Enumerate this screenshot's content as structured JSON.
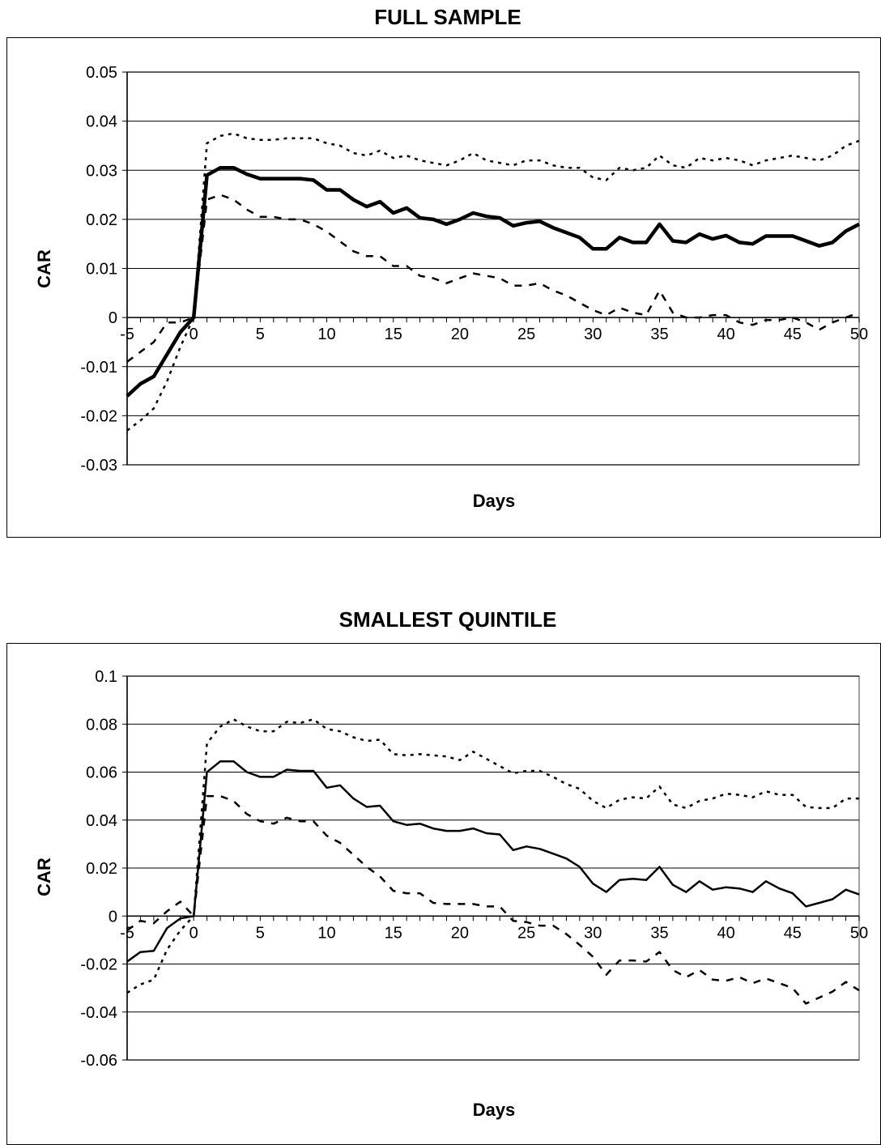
{
  "charts": [
    {
      "title": "FULL SAMPLE",
      "xlabel": "Days",
      "ylabel": "CAR"
    },
    {
      "title": "SMALLEST QUINTILE",
      "xlabel": "Days",
      "ylabel": "CAR"
    }
  ],
  "chart_data": [
    {
      "type": "line",
      "title": "FULL SAMPLE",
      "xlabel": "Days",
      "ylabel": "CAR",
      "xlim": [
        -5,
        50
      ],
      "ylim": [
        -0.03,
        0.05
      ],
      "xticks": [
        -5,
        0,
        5,
        10,
        15,
        20,
        25,
        30,
        35,
        40,
        45,
        50
      ],
      "xtick_labels": [
        "-5",
        "0",
        "5",
        "10",
        "15",
        "20",
        "25",
        "30",
        "35",
        "40",
        "45",
        "50"
      ],
      "yticks": [
        -0.03,
        -0.02,
        -0.01,
        0,
        0.01,
        0.02,
        0.03,
        0.04,
        0.05
      ],
      "ytick_labels": [
        "-0.03",
        "-0.02",
        "-0.01",
        "0",
        "0.01",
        "0.02",
        "0.03",
        "0.04",
        "0.05"
      ],
      "grid": true,
      "x": [
        -5,
        -4,
        -3,
        -2,
        -1,
        0,
        1,
        2,
        3,
        4,
        5,
        6,
        7,
        8,
        9,
        10,
        11,
        12,
        13,
        14,
        15,
        16,
        17,
        18,
        19,
        20,
        21,
        22,
        23,
        24,
        25,
        26,
        27,
        28,
        29,
        30,
        31,
        32,
        33,
        34,
        35,
        36,
        37,
        38,
        39,
        40,
        41,
        42,
        43,
        44,
        45,
        46,
        47,
        48,
        49,
        50
      ],
      "series": [
        {
          "style": "solid-thick",
          "values": [
            -0.016,
            -0.0135,
            -0.012,
            -0.0075,
            -0.003,
            0,
            0.029,
            0.0305,
            0.0305,
            0.0292,
            0.0283,
            0.0283,
            0.0283,
            0.0283,
            0.028,
            0.026,
            0.026,
            0.024,
            0.0226,
            0.0236,
            0.0213,
            0.0223,
            0.0203,
            0.02,
            0.019,
            0.02,
            0.0213,
            0.0206,
            0.0203,
            0.0187,
            0.0193,
            0.0196,
            0.0183,
            0.0173,
            0.0163,
            0.014,
            0.014,
            0.0163,
            0.0153,
            0.0153,
            0.019,
            0.0156,
            0.0153,
            0.017,
            0.016,
            0.0167,
            0.0153,
            0.015,
            0.0166,
            0.0166,
            0.0166,
            0.0156,
            0.0146,
            0.0153,
            0.0176,
            0.019
          ]
        },
        {
          "style": "dashed",
          "values": [
            -0.009,
            -0.007,
            -0.005,
            -0.001,
            -0.001,
            0,
            0.024,
            0.025,
            0.024,
            0.022,
            0.0205,
            0.0205,
            0.02,
            0.02,
            0.019,
            0.0175,
            0.0155,
            0.0135,
            0.0125,
            0.0125,
            0.0105,
            0.0105,
            0.0085,
            0.008,
            0.007,
            0.008,
            0.009,
            0.0085,
            0.008,
            0.0065,
            0.0065,
            0.007,
            0.0055,
            0.0045,
            0.003,
            0.0015,
            0.0005,
            0.002,
            0.001,
            0.0005,
            0.0055,
            0.001,
            0.0,
            0.0,
            0.0005,
            0.0005,
            -0.001,
            -0.0015,
            -0.0005,
            -0.0005,
            0.0,
            -0.001,
            -0.0025,
            -0.001,
            0.0,
            0.001
          ]
        },
        {
          "style": "dotted",
          "values": [
            -0.023,
            -0.021,
            -0.0185,
            -0.013,
            -0.006,
            0,
            0.0355,
            0.037,
            0.0375,
            0.0365,
            0.0362,
            0.0362,
            0.0365,
            0.0365,
            0.0365,
            0.0355,
            0.035,
            0.0335,
            0.033,
            0.034,
            0.0325,
            0.033,
            0.032,
            0.0315,
            0.031,
            0.032,
            0.0335,
            0.032,
            0.0315,
            0.031,
            0.032,
            0.032,
            0.031,
            0.0305,
            0.0305,
            0.0285,
            0.028,
            0.0305,
            0.03,
            0.0305,
            0.033,
            0.031,
            0.0305,
            0.0325,
            0.032,
            0.0325,
            0.032,
            0.031,
            0.032,
            0.0325,
            0.033,
            0.0325,
            0.032,
            0.033,
            0.035,
            0.036
          ]
        }
      ]
    },
    {
      "type": "line",
      "title": "SMALLEST QUINTILE",
      "xlabel": "Days",
      "ylabel": "CAR",
      "xlim": [
        -5,
        50
      ],
      "ylim": [
        -0.06,
        0.1
      ],
      "xticks": [
        -5,
        0,
        5,
        10,
        15,
        20,
        25,
        30,
        35,
        40,
        45,
        50
      ],
      "xtick_labels": [
        "-5",
        "0",
        "5",
        "10",
        "15",
        "20",
        "25",
        "30",
        "35",
        "40",
        "45",
        "50"
      ],
      "yticks": [
        -0.06,
        -0.04,
        -0.02,
        0,
        0.02,
        0.04,
        0.06,
        0.08,
        0.1
      ],
      "ytick_labels": [
        "-0.06",
        "-0.04",
        "-0.02",
        "0",
        "0.02",
        "0.04",
        "0.06",
        "0.08",
        "0.1"
      ],
      "grid": true,
      "x": [
        -5,
        -4,
        -3,
        -2,
        -1,
        0,
        1,
        2,
        3,
        4,
        5,
        6,
        7,
        8,
        9,
        10,
        11,
        12,
        13,
        14,
        15,
        16,
        17,
        18,
        19,
        20,
        21,
        22,
        23,
        24,
        25,
        26,
        27,
        28,
        29,
        30,
        31,
        32,
        33,
        34,
        35,
        36,
        37,
        38,
        39,
        40,
        41,
        42,
        43,
        44,
        45,
        46,
        47,
        48,
        49,
        50
      ],
      "series": [
        {
          "style": "solid",
          "values": [
            -0.019,
            -0.015,
            -0.0145,
            -0.005,
            -0.001,
            0,
            0.06,
            0.0645,
            0.0645,
            0.06,
            0.058,
            0.058,
            0.061,
            0.0605,
            0.0605,
            0.0535,
            0.0545,
            0.049,
            0.0455,
            0.046,
            0.0395,
            0.038,
            0.0385,
            0.0365,
            0.0355,
            0.0355,
            0.0365,
            0.0345,
            0.034,
            0.0275,
            0.029,
            0.028,
            0.026,
            0.024,
            0.0205,
            0.0135,
            0.01,
            0.015,
            0.0155,
            0.015,
            0.0205,
            0.013,
            0.01,
            0.0145,
            0.011,
            0.012,
            0.0115,
            0.01,
            0.0145,
            0.0115,
            0.0095,
            0.004,
            0.0055,
            0.007,
            0.011,
            0.009
          ]
        },
        {
          "style": "dashed",
          "values": [
            -0.006,
            -0.002,
            -0.003,
            0.002,
            0.006,
            0,
            0.05,
            0.05,
            0.048,
            0.0425,
            0.0395,
            0.0385,
            0.041,
            0.0395,
            0.0395,
            0.0335,
            0.0305,
            0.0255,
            0.0205,
            0.0165,
            0.0105,
            0.0095,
            0.0095,
            0.0055,
            0.005,
            0.005,
            0.005,
            0.004,
            0.004,
            -0.002,
            -0.0025,
            -0.004,
            -0.004,
            -0.0075,
            -0.012,
            -0.017,
            -0.0245,
            -0.0185,
            -0.0185,
            -0.019,
            -0.015,
            -0.0225,
            -0.0255,
            -0.0225,
            -0.0265,
            -0.027,
            -0.0255,
            -0.028,
            -0.026,
            -0.028,
            -0.03,
            -0.0365,
            -0.034,
            -0.0315,
            -0.0275,
            -0.031
          ]
        },
        {
          "style": "dotted",
          "values": [
            -0.032,
            -0.0285,
            -0.0265,
            -0.014,
            -0.006,
            0,
            0.072,
            0.079,
            0.082,
            0.079,
            0.077,
            0.077,
            0.081,
            0.0805,
            0.082,
            0.078,
            0.077,
            0.0745,
            0.073,
            0.0735,
            0.0675,
            0.067,
            0.0675,
            0.067,
            0.0665,
            0.065,
            0.0685,
            0.0655,
            0.0625,
            0.0595,
            0.0605,
            0.0605,
            0.058,
            0.055,
            0.053,
            0.048,
            0.045,
            0.0485,
            0.0495,
            0.049,
            0.054,
            0.0465,
            0.045,
            0.048,
            0.049,
            0.051,
            0.0505,
            0.0495,
            0.052,
            0.0505,
            0.0505,
            0.0455,
            0.045,
            0.045,
            0.049,
            0.049
          ]
        }
      ]
    }
  ]
}
